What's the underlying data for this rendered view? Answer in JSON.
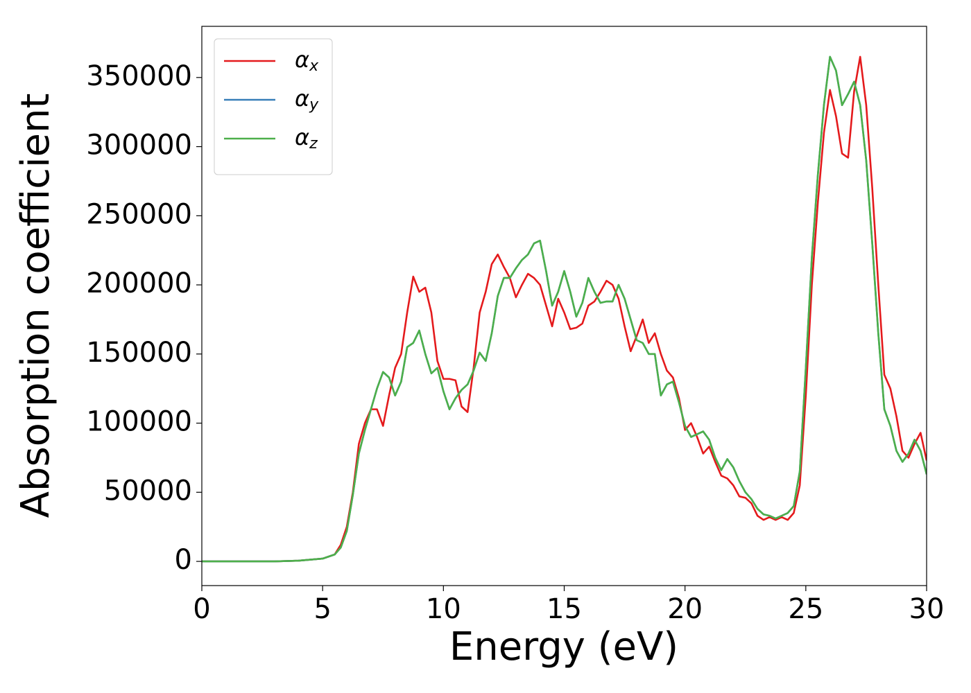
{
  "chart_data": {
    "type": "line",
    "xlabel": "Energy (eV)",
    "ylabel": "Absorption coefficient",
    "xlim": [
      0,
      30
    ],
    "ylim": [
      -17500,
      387000
    ],
    "xticks": [
      0,
      5,
      10,
      15,
      20,
      25,
      30
    ],
    "yticks": [
      0,
      50000,
      100000,
      150000,
      200000,
      250000,
      300000,
      350000
    ],
    "grid": false,
    "legend": "upper left",
    "x": [
      0,
      1,
      2,
      3,
      4,
      5,
      5.5,
      5.75,
      6,
      6.25,
      6.5,
      6.75,
      7,
      7.25,
      7.5,
      7.75,
      8,
      8.25,
      8.5,
      8.75,
      9,
      9.25,
      9.5,
      9.75,
      10,
      10.25,
      10.5,
      10.75,
      11,
      11.25,
      11.5,
      11.75,
      12,
      12.25,
      12.5,
      12.75,
      13,
      13.25,
      13.5,
      13.75,
      14,
      14.25,
      14.5,
      14.75,
      15,
      15.25,
      15.5,
      15.75,
      16,
      16.25,
      16.5,
      16.75,
      17,
      17.25,
      17.5,
      17.75,
      18,
      18.25,
      18.5,
      18.75,
      19,
      19.25,
      19.5,
      19.75,
      20,
      20.25,
      20.5,
      20.75,
      21,
      21.25,
      21.5,
      21.75,
      22,
      22.25,
      22.5,
      22.75,
      23,
      23.25,
      23.5,
      23.75,
      24,
      24.25,
      24.5,
      24.75,
      25,
      25.25,
      25.5,
      25.75,
      26,
      26.25,
      26.5,
      26.75,
      27,
      27.25,
      27.5,
      27.75,
      28,
      28.25,
      28.5,
      28.75,
      29,
      29.25,
      29.5,
      29.75,
      30
    ],
    "series": [
      {
        "name": "αx",
        "color": "#e41a1c",
        "values": [
          0,
          0,
          0,
          0,
          500,
          2000,
          5000,
          12000,
          25000,
          50000,
          85000,
          100000,
          110000,
          110000,
          98000,
          120000,
          140000,
          150000,
          180000,
          206000,
          195000,
          198000,
          180000,
          145000,
          132000,
          132000,
          131000,
          112000,
          108000,
          140000,
          180000,
          195000,
          215000,
          222000,
          213000,
          205000,
          191000,
          200000,
          208000,
          205000,
          200000,
          185000,
          170000,
          190000,
          180000,
          168000,
          169000,
          172000,
          185000,
          188000,
          195000,
          203000,
          200000,
          190000,
          170000,
          152000,
          163000,
          175000,
          158000,
          165000,
          150000,
          138000,
          133000,
          118000,
          95000,
          100000,
          90000,
          78000,
          83000,
          72000,
          62000,
          60000,
          55000,
          47000,
          46000,
          42000,
          33000,
          30000,
          32000,
          30000,
          32000,
          30000,
          35000,
          55000,
          120000,
          200000,
          260000,
          310000,
          341000,
          322000,
          295000,
          292000,
          340000,
          365000,
          330000,
          270000,
          200000,
          135000,
          125000,
          105000,
          80000,
          75000,
          85000,
          93000,
          73000
        ]
      },
      {
        "name": "αy",
        "color": "#377eb8",
        "values": [
          0,
          0,
          0,
          0,
          500,
          2000,
          5000,
          10000,
          22000,
          48000,
          78000,
          95000,
          110000,
          125000,
          137000,
          133000,
          120000,
          130000,
          155000,
          158000,
          167000,
          150000,
          136000,
          140000,
          123000,
          110000,
          118000,
          124000,
          128000,
          138000,
          151000,
          145000,
          165000,
          192000,
          205000,
          205000,
          212000,
          218000,
          222000,
          230000,
          232000,
          210000,
          185000,
          195000,
          210000,
          195000,
          177000,
          187000,
          205000,
          195000,
          187000,
          188000,
          188000,
          200000,
          190000,
          175000,
          160000,
          158000,
          150000,
          150000,
          120000,
          128000,
          130000,
          115000,
          98000,
          90000,
          92000,
          94000,
          88000,
          75000,
          66000,
          74000,
          68000,
          58000,
          50000,
          45000,
          38000,
          34000,
          33000,
          31000,
          33000,
          35000,
          40000,
          65000,
          140000,
          220000,
          280000,
          330000,
          365000,
          355000,
          330000,
          338000,
          347000,
          330000,
          290000,
          230000,
          165000,
          110000,
          98000,
          80000,
          72000,
          78000,
          88000,
          80000,
          63000
        ]
      },
      {
        "name": "αz",
        "color": "#4daf4a",
        "values": [
          0,
          0,
          0,
          0,
          500,
          2000,
          5000,
          10000,
          22000,
          48000,
          78000,
          95000,
          110000,
          125000,
          137000,
          133000,
          120000,
          130000,
          155000,
          158000,
          167000,
          150000,
          136000,
          140000,
          123000,
          110000,
          118000,
          124000,
          128000,
          138000,
          151000,
          145000,
          165000,
          192000,
          205000,
          205000,
          212000,
          218000,
          222000,
          230000,
          232000,
          210000,
          185000,
          195000,
          210000,
          195000,
          177000,
          187000,
          205000,
          195000,
          187000,
          188000,
          188000,
          200000,
          190000,
          175000,
          160000,
          158000,
          150000,
          150000,
          120000,
          128000,
          130000,
          115000,
          98000,
          90000,
          92000,
          94000,
          88000,
          75000,
          66000,
          74000,
          68000,
          58000,
          50000,
          45000,
          38000,
          34000,
          33000,
          31000,
          33000,
          35000,
          40000,
          65000,
          140000,
          220000,
          280000,
          330000,
          365000,
          355000,
          330000,
          338000,
          347000,
          330000,
          290000,
          230000,
          165000,
          110000,
          98000,
          80000,
          72000,
          78000,
          88000,
          80000,
          63000
        ]
      }
    ]
  }
}
